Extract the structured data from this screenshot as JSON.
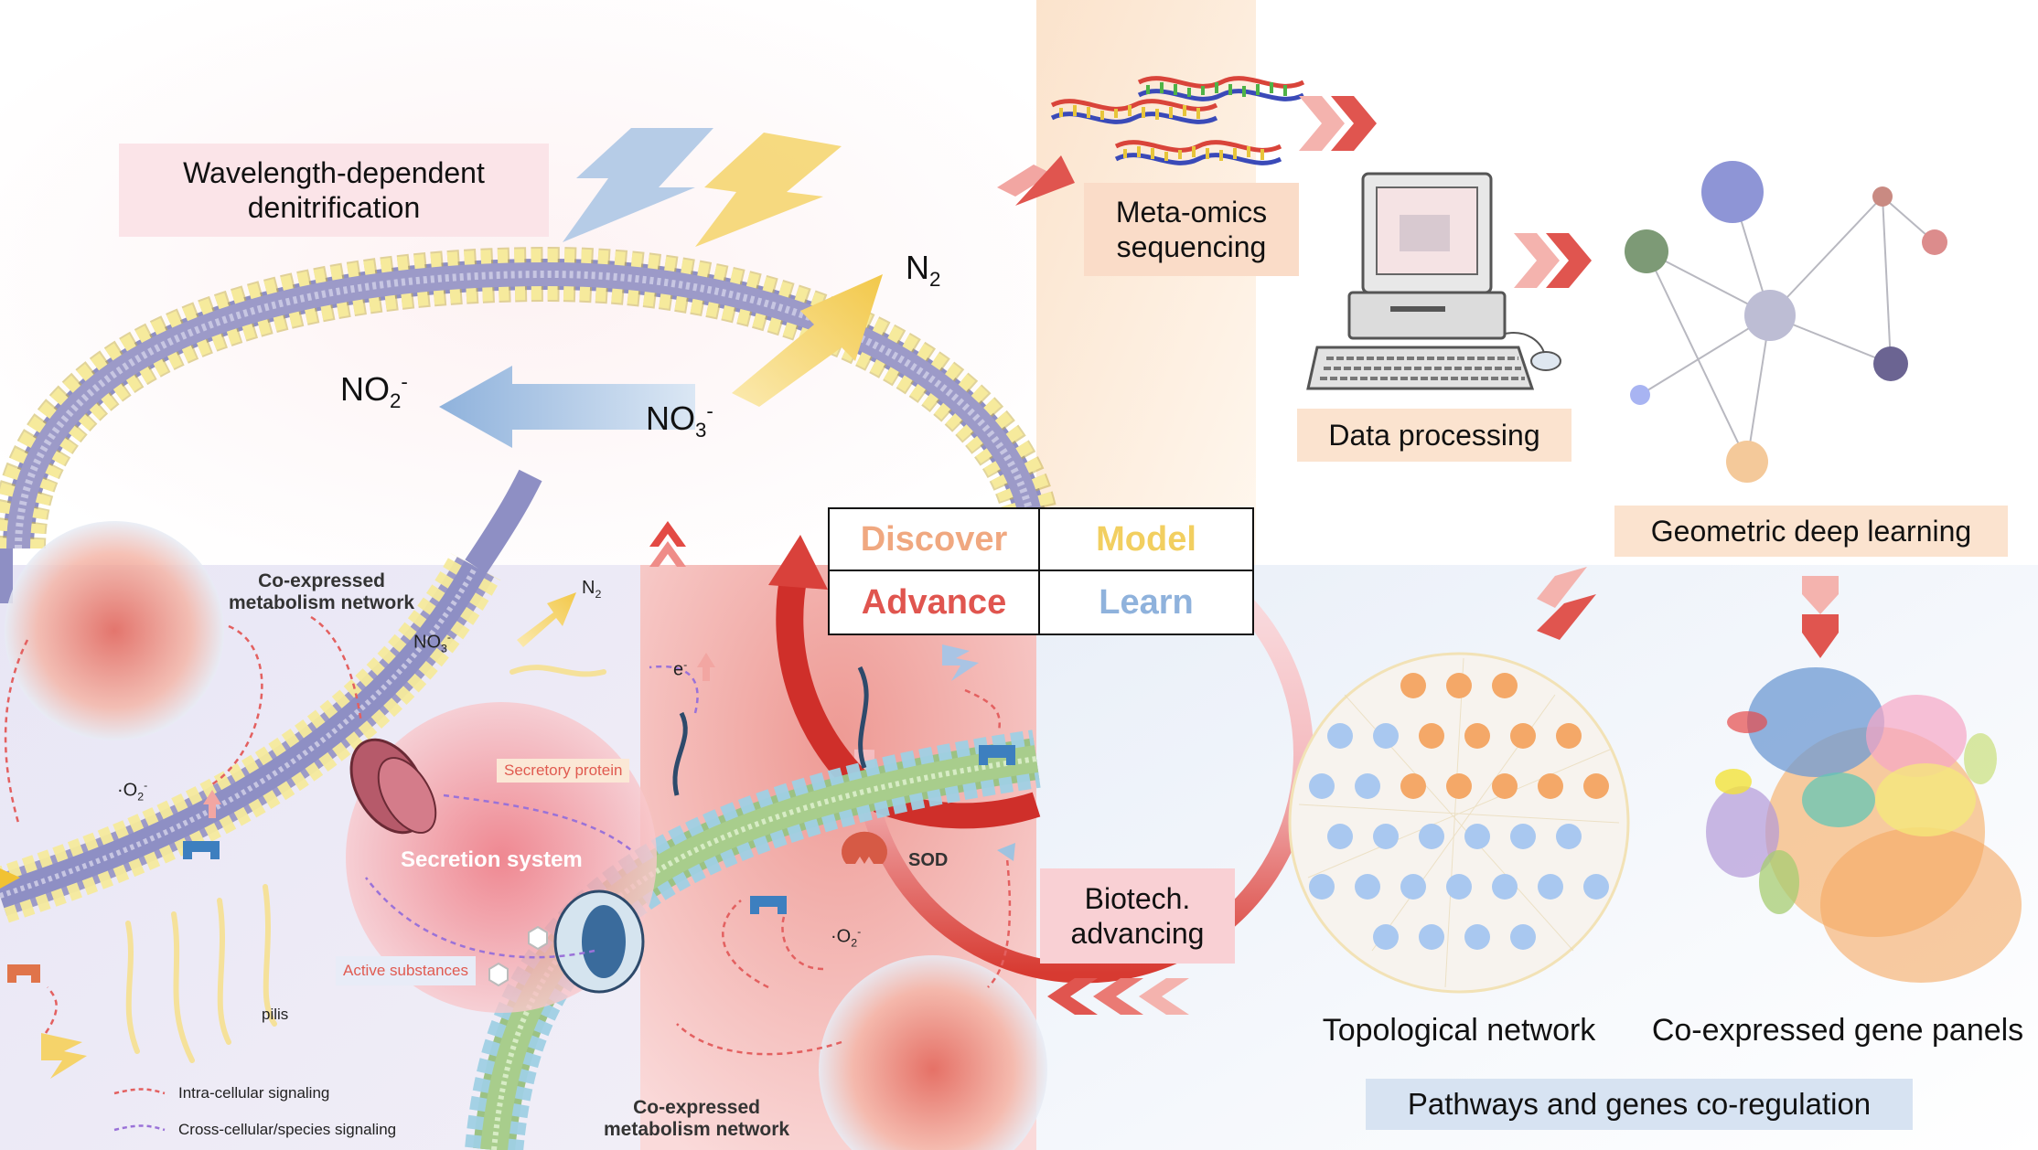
{
  "colors": {
    "discover": "#f0a880",
    "model": "#f2cf60",
    "advance": "#e0554f",
    "learn": "#8fb2dc",
    "membrane_yellow": "#f5e68a",
    "membrane_blue": "#a9d4e6",
    "cycle_red": "#d73a31",
    "panel_pink": "#fbe8ea",
    "panel_peach": "#fbe7d5",
    "panel_blue": "#dde8f4"
  },
  "top_left": {
    "title_line1": "Wavelength-dependent",
    "title_line2": "denitrification",
    "n2": "N",
    "n2_sub": "2",
    "no2": "NO",
    "no2_sub": "2",
    "no2_sup": "-",
    "no3": "NO",
    "no3_sub": "3",
    "no3_sup": "-"
  },
  "center_grid": {
    "discover": "Discover",
    "model": "Model",
    "advance": "Advance",
    "learn": "Learn"
  },
  "top_right": {
    "metaomics_line1": "Meta-omics",
    "metaomics_line2": "sequencing",
    "data_processing": "Data processing",
    "geometric": "Geometric deep learning"
  },
  "bottom_right": {
    "topological": "Topological network",
    "coexpressed_panels": "Co-expressed gene panels",
    "pathways": "Pathways and genes co-regulation"
  },
  "bottom_middle": {
    "biotech_line1": "Biotech.",
    "biotech_line2": "advancing"
  },
  "bottom_left": {
    "coexp_top_line1": "Co-expressed",
    "coexp_top_line2": "metabolism network",
    "coexp_bottom_line1": "Co-expressed",
    "coexp_bottom_line2": "metabolism network",
    "n2_small": "N",
    "n2_small_sub": "2",
    "no3_small": "NO",
    "no3_small_sub": "3",
    "no3_small_sup": "-",
    "o2_left": "·O",
    "o2_left_sub": "2",
    "o2_left_sup": "-",
    "o2_right": "·O",
    "o2_right_sub": "2",
    "o2_right_sup": "-",
    "electron": "e",
    "electron_sup": "-",
    "secretory_protein": "Secretory protein",
    "secretion_system": "Secretion system",
    "active_substances": "Active substances",
    "pilis": "pilis",
    "sod": "SOD",
    "legend_intra": "Intra-cellular signaling",
    "legend_cross": "Cross-cellular/species signaling"
  }
}
